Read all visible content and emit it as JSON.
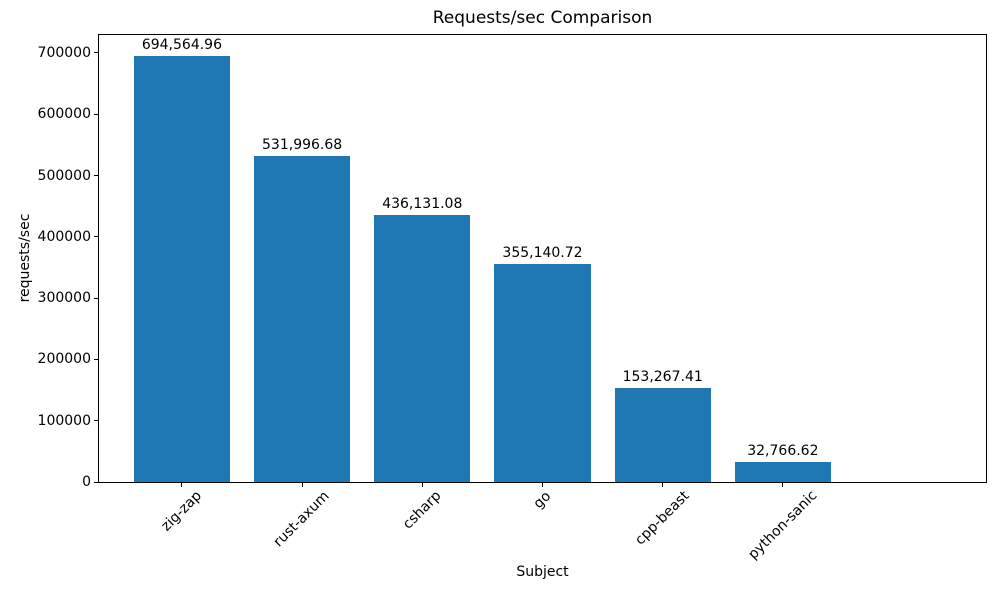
{
  "chart_data": {
    "type": "bar",
    "title": "Requests/sec Comparison",
    "xlabel": "Subject",
    "ylabel": "requests/sec",
    "categories": [
      "zig-zap",
      "rust-axum",
      "csharp",
      "go",
      "cpp-beast",
      "python-sanic"
    ],
    "values": [
      694564.96,
      531996.68,
      436131.08,
      355140.72,
      153267.41,
      32766.62
    ],
    "value_labels": [
      "694,564.96",
      "531,996.68",
      "436,131.08",
      "355,140.72",
      "153,267.41",
      "32,766.62"
    ],
    "yticks": [
      0,
      100000,
      200000,
      300000,
      400000,
      500000,
      600000,
      700000
    ],
    "ytick_labels": [
      "0",
      "100000",
      "200000",
      "300000",
      "400000",
      "500000",
      "600000",
      "700000"
    ],
    "ylim": [
      0,
      729293
    ],
    "x_tick_rotation_deg": -45,
    "grid": false,
    "legend_position": "none",
    "bar_color": "#1f77b4",
    "text_color": "#000000",
    "background_color": "#ffffff"
  }
}
